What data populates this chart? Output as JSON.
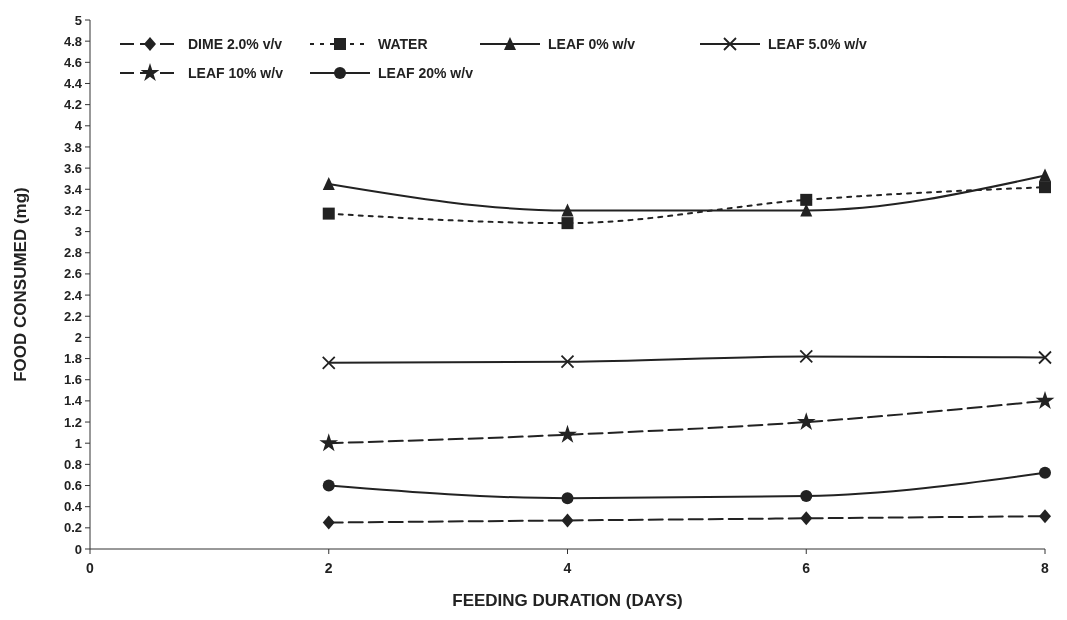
{
  "chart_data": {
    "type": "line",
    "xlabel": "FEEDING DURATION (DAYS)",
    "ylabel": "FOOD CONSUMED (mg)",
    "x": [
      2,
      4,
      6,
      8
    ],
    "xlim": [
      0,
      8
    ],
    "xticks": [
      0,
      2,
      4,
      6,
      8
    ],
    "ylim": [
      0,
      5
    ],
    "yticks": [
      0,
      0.2,
      0.4,
      0.6,
      0.8,
      1,
      1.2,
      1.4,
      1.6,
      1.8,
      2,
      2.2,
      2.4,
      2.6,
      2.8,
      3,
      3.2,
      3.4,
      3.6,
      3.8,
      4,
      4.2,
      4.4,
      4.6,
      4.8,
      5
    ],
    "grid": false,
    "legend": "top left",
    "series": [
      {
        "name": "DIME 2.0% v/v",
        "color": "#222222",
        "values": [
          0.25,
          0.27,
          0.29,
          0.31
        ],
        "marker": "diamond",
        "line_style": "dashed"
      },
      {
        "name": "WATER",
        "color": "#222222",
        "values": [
          3.17,
          3.08,
          3.3,
          3.42
        ],
        "marker": "square",
        "line_style": "dotted"
      },
      {
        "name": "LEAF 0% w/v",
        "color": "#222222",
        "values": [
          3.45,
          3.2,
          3.2,
          3.53
        ],
        "marker": "triangle",
        "line_style": "solid"
      },
      {
        "name": "LEAF 5.0% w/v",
        "color": "#222222",
        "values": [
          1.76,
          1.77,
          1.82,
          1.81
        ],
        "marker": "cross",
        "line_style": "solid"
      },
      {
        "name": "LEAF 10% w/v",
        "color": "#222222",
        "values": [
          1.0,
          1.08,
          1.2,
          1.4
        ],
        "marker": "star",
        "line_style": "dashed"
      },
      {
        "name": "LEAF 20% w/v",
        "color": "#222222",
        "values": [
          0.6,
          0.48,
          0.5,
          0.72
        ],
        "marker": "circle",
        "line_style": "solid"
      }
    ]
  }
}
